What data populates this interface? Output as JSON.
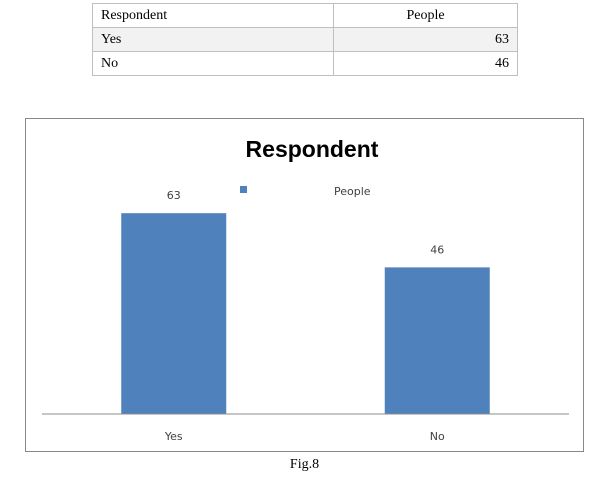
{
  "table": {
    "headers": [
      "Respondent",
      "People"
    ],
    "rows": [
      {
        "label": "Yes",
        "value": "63"
      },
      {
        "label": "No",
        "value": "46"
      }
    ]
  },
  "chart_data": {
    "type": "bar",
    "title": "Respondent",
    "categories": [
      "Yes",
      "No"
    ],
    "series": [
      {
        "name": "People",
        "values": [
          63,
          46
        ],
        "color": "#4f81bd"
      }
    ],
    "data_labels": [
      "63",
      "46"
    ],
    "ylim": [
      0,
      80
    ],
    "legend_position": "top",
    "grid": false,
    "xlabel": "",
    "ylabel": ""
  },
  "caption": "Fig.8"
}
